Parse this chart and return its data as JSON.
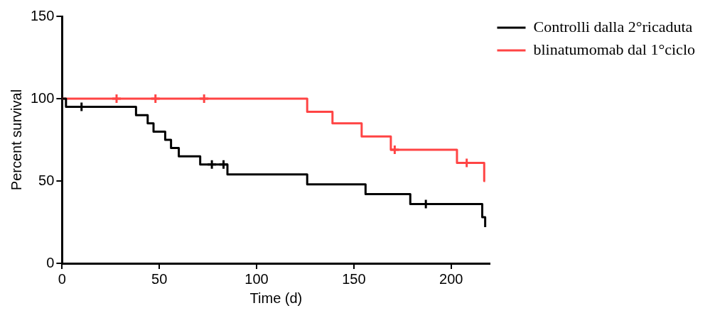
{
  "chart_data": {
    "type": "step",
    "xlabel": "Time (d)",
    "ylabel": "Percent survival",
    "xlim": [
      0,
      220
    ],
    "xticks": [
      0,
      50,
      100,
      150,
      200
    ],
    "ylim": [
      0,
      150
    ],
    "yticks": [
      0,
      50,
      100,
      150
    ],
    "grid": false,
    "legend": "top right",
    "series": [
      {
        "name": "Controlli dalla 2°ricaduta",
        "color": "#000000",
        "x": [
          0,
          2,
          38,
          44,
          47,
          53,
          56,
          60,
          71,
          85,
          126,
          156,
          179,
          216,
          217.5
        ],
        "values": [
          100,
          95,
          90,
          85,
          80,
          75,
          70,
          65,
          60,
          54,
          48,
          42,
          36,
          28,
          22
        ]
      },
      {
        "name": "blinatumomab dal 1°ciclo",
        "color": "#ff4444",
        "x": [
          0,
          126,
          139,
          154,
          169,
          203,
          217,
          217.5
        ],
        "values": [
          100,
          92,
          85,
          77,
          69,
          61,
          50,
          50
        ]
      },
      {
        "type": "scatter",
        "marker": "cross",
        "color": "#000000",
        "x": [
          10,
          77,
          83,
          187
        ],
        "values": [
          95,
          60,
          60,
          36
        ]
      },
      {
        "type": "scatter",
        "marker": "cross",
        "color": "#ff4444",
        "x": [
          28,
          48,
          73,
          171,
          208
        ],
        "values": [
          100,
          100,
          100,
          69,
          61
        ]
      }
    ]
  }
}
